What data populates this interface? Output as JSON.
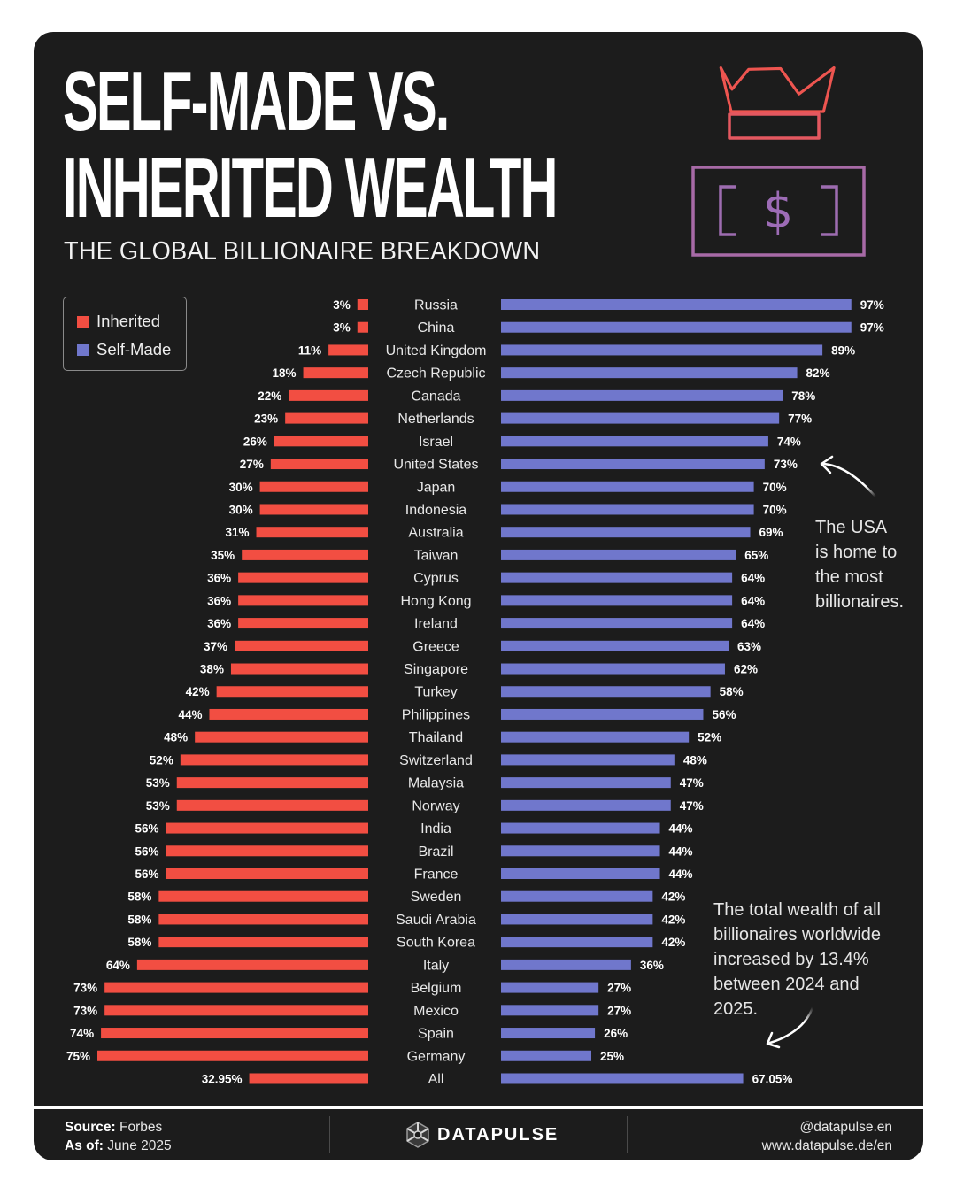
{
  "header": {
    "title_line1": "SELF-MADE VS.",
    "title_line2": "INHERITED WEALTH",
    "subtitle": "THE GLOBAL BILLIONAIRE BREAKDOWN",
    "icons": [
      "crown-icon",
      "banknote-dollar-icon"
    ]
  },
  "colors": {
    "background": "#1c1c1c",
    "inherited": "#f24e42",
    "self_made": "#7077cc",
    "text": "#ffffff",
    "icon_gradient_top": "#f0554a",
    "icon_gradient_bottom": "#6f76d4"
  },
  "legend": {
    "items": [
      {
        "label": "Inherited",
        "color": "#f24e42"
      },
      {
        "label": "Self-Made",
        "color": "#7077cc"
      }
    ]
  },
  "annotations": {
    "usa": [
      "The USA",
      "is home to",
      "the most",
      "billionaires."
    ],
    "total": [
      "The total wealth of all",
      "billionaires worldwide",
      "increased by 13.4%",
      "between 2024 and",
      "2025."
    ]
  },
  "chart_data": {
    "type": "bar",
    "orientation": "horizontal-diverging",
    "title": "Self-Made vs. Inherited Wealth",
    "subtitle": "The Global Billionaire Breakdown",
    "xlabel": "",
    "ylabel": "",
    "unit": "%",
    "xlim": [
      0,
      100
    ],
    "grid": false,
    "legend_position": "top-left",
    "categories": [
      "Russia",
      "China",
      "United Kingdom",
      "Czech Republic",
      "Canada",
      "Netherlands",
      "Israel",
      "United States",
      "Japan",
      "Indonesia",
      "Australia",
      "Taiwan",
      "Cyprus",
      "Hong Kong",
      "Ireland",
      "Greece",
      "Singapore",
      "Turkey",
      "Philippines",
      "Thailand",
      "Switzerland",
      "Malaysia",
      "Norway",
      "India",
      "Brazil",
      "France",
      "Sweden",
      "Saudi Arabia",
      "South Korea",
      "Italy",
      "Belgium",
      "Mexico",
      "Spain",
      "Germany",
      "All"
    ],
    "series": [
      {
        "name": "Inherited",
        "color": "#f24e42",
        "side": "left",
        "values": [
          3,
          3,
          11,
          18,
          22,
          23,
          26,
          27,
          30,
          30,
          31,
          35,
          36,
          36,
          36,
          37,
          38,
          42,
          44,
          48,
          52,
          53,
          53,
          56,
          56,
          56,
          58,
          58,
          58,
          64,
          73,
          73,
          74,
          75,
          32.95
        ],
        "labels": [
          "3%",
          "3%",
          "11%",
          "18%",
          "22%",
          "23%",
          "26%",
          "27%",
          "30%",
          "30%",
          "31%",
          "35%",
          "36%",
          "36%",
          "36%",
          "37%",
          "38%",
          "42%",
          "44%",
          "48%",
          "52%",
          "53%",
          "53%",
          "56%",
          "56%",
          "56%",
          "58%",
          "58%",
          "58%",
          "64%",
          "73%",
          "73%",
          "74%",
          "75%",
          "32.95%"
        ]
      },
      {
        "name": "Self-Made",
        "color": "#7077cc",
        "side": "right",
        "values": [
          97,
          97,
          89,
          82,
          78,
          77,
          74,
          73,
          70,
          70,
          69,
          65,
          64,
          64,
          64,
          63,
          62,
          58,
          56,
          52,
          48,
          47,
          47,
          44,
          44,
          44,
          42,
          42,
          42,
          36,
          27,
          27,
          26,
          25,
          67.05
        ],
        "labels": [
          "97%",
          "97%",
          "89%",
          "82%",
          "78%",
          "77%",
          "74%",
          "73%",
          "70%",
          "70%",
          "69%",
          "65%",
          "64%",
          "64%",
          "64%",
          "63%",
          "62%",
          "58%",
          "56%",
          "52%",
          "48%",
          "47%",
          "47%",
          "44%",
          "44%",
          "44%",
          "42%",
          "42%",
          "42%",
          "36%",
          "27%",
          "27%",
          "26%",
          "25%",
          "67.05%"
        ]
      }
    ]
  },
  "footer": {
    "source_label": "Source:",
    "source_value": "Forbes",
    "asof_label": "As of:",
    "asof_value": "June 2025",
    "brand": "DATAPULSE",
    "handle": "@datapulse.en",
    "website": "www.datapulse.de/en"
  }
}
